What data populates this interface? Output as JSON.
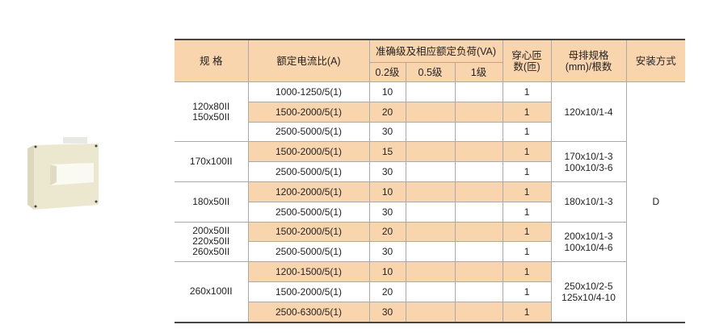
{
  "header": {
    "spec": "规 格",
    "ratio": "额定电流比(A)",
    "accuracy": "准确级及相应额定负荷(VA)",
    "acc_02": "0.2级",
    "acc_05": "0.5级",
    "acc_1": "1级",
    "turns": "穿心匝数(匝)",
    "busbar": "母排规格(mm)/根数",
    "install": "安装方式"
  },
  "install_value": "D",
  "colors": {
    "highlight": "#f9d5ae",
    "border": "#aaaaaa"
  },
  "groups": [
    {
      "spec": [
        "120x80II",
        "150x50II"
      ],
      "busbar": [
        "120x10/1-4"
      ],
      "rows": [
        {
          "ratio": "1000-1250/5(1)",
          "va02": "10",
          "va05": "",
          "va1": "",
          "turns": "1",
          "highlight": false
        },
        {
          "ratio": "1500-2000/5(1)",
          "va02": "20",
          "va05": "",
          "va1": "",
          "turns": "1",
          "highlight": true
        },
        {
          "ratio": "2500-5000/5(1)",
          "va02": "30",
          "va05": "",
          "va1": "",
          "turns": "1",
          "highlight": false
        }
      ]
    },
    {
      "spec": [
        "170x100II"
      ],
      "busbar": [
        "170x10/1-3",
        "100x10/3-6"
      ],
      "rows": [
        {
          "ratio": "1500-2000/5(1)",
          "va02": "15",
          "va05": "",
          "va1": "",
          "turns": "1",
          "highlight": true
        },
        {
          "ratio": "2500-5000/5(1)",
          "va02": "30",
          "va05": "",
          "va1": "",
          "turns": "1",
          "highlight": false
        }
      ]
    },
    {
      "spec": [
        "180x50II"
      ],
      "busbar": [
        "180x10/1-3"
      ],
      "rows": [
        {
          "ratio": "1200-2000/5(1)",
          "va02": "10",
          "va05": "",
          "va1": "",
          "turns": "1",
          "highlight": true
        },
        {
          "ratio": "2500-5000/5(1)",
          "va02": "30",
          "va05": "",
          "va1": "",
          "turns": "1",
          "highlight": false
        }
      ]
    },
    {
      "spec": [
        "200x50II",
        "220x50II",
        "260x50II"
      ],
      "busbar": [
        "200x10/1-3",
        "100x10/4-6"
      ],
      "rows": [
        {
          "ratio": "1500-2000/5(1)",
          "va02": "20",
          "va05": "",
          "va1": "",
          "turns": "1",
          "highlight": true
        },
        {
          "ratio": "2500-5000/5(1)",
          "va02": "30",
          "va05": "",
          "va1": "",
          "turns": "1",
          "highlight": false
        }
      ]
    },
    {
      "spec": [
        "260x100II"
      ],
      "busbar": [
        "250x10/2-5",
        "125x10/4-10"
      ],
      "rows": [
        {
          "ratio": "1200-1500/5(1)",
          "va02": "10",
          "va05": "",
          "va1": "",
          "turns": "1",
          "highlight": true
        },
        {
          "ratio": "1500-2000/5(1)",
          "va02": "20",
          "va05": "",
          "va1": "",
          "turns": "1",
          "highlight": false
        },
        {
          "ratio": "2500-6300/5(1)",
          "va02": "30",
          "va05": "",
          "va1": "",
          "turns": "1",
          "highlight": true
        }
      ]
    }
  ]
}
